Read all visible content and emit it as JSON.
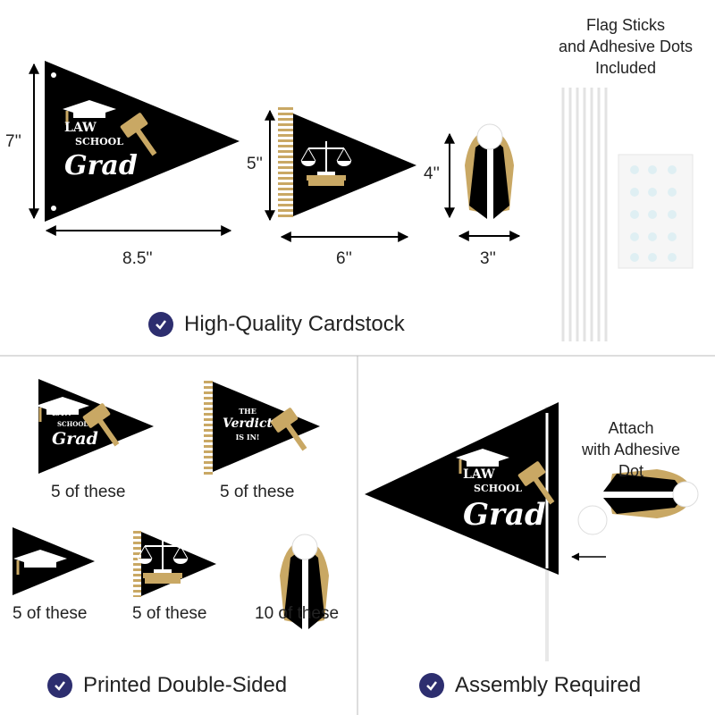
{
  "colors": {
    "black": "#000000",
    "gold": "#c9a864",
    "check": "#2d2e6f",
    "divider": "#bbbbbb"
  },
  "top": {
    "dimensions": {
      "large_height": "7''",
      "large_width": "8.5''",
      "medium_height": "5''",
      "medium_width": "6''",
      "tassel_height": "4''",
      "tassel_width": "3''"
    },
    "flag_note": [
      "Flag Sticks",
      "and Adhesive Dots",
      "Included"
    ],
    "pennant_text": {
      "line1": "LAW",
      "line2": "SCHOOL",
      "line3": "Grad"
    },
    "feature": "High-Quality Cardstock"
  },
  "left": {
    "items": [
      {
        "count": "5 of these"
      },
      {
        "count": "5 of these",
        "text": [
          "THE",
          "Verdict",
          "IS IN!"
        ]
      },
      {
        "count": "5 of these"
      },
      {
        "count": "5 of these"
      },
      {
        "count": "10 of these"
      }
    ],
    "feature": "Printed Double-Sided"
  },
  "right": {
    "note": [
      "Attach",
      "with Adhesive",
      "Dot"
    ],
    "feature": "Assembly Required"
  }
}
